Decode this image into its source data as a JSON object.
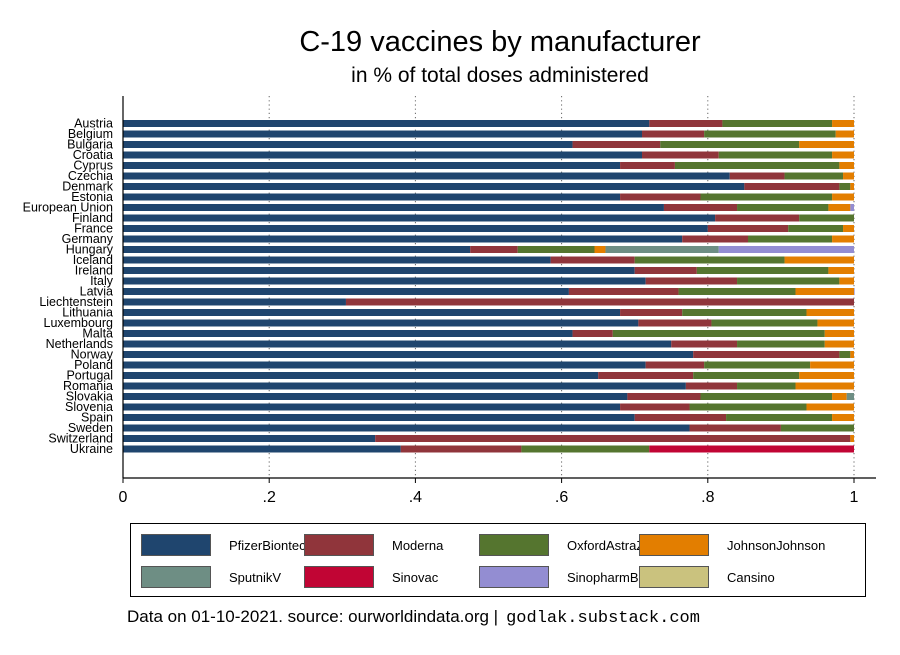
{
  "title": "C-19 vaccines by manufacturer",
  "subtitle": "in % of total doses administered",
  "footer": {
    "source": "Data on 01-10-2021. source: ourworldindata.org |",
    "site": "godlak.substack.com"
  },
  "colors": {
    "PfizerBiontech": "#1f456e",
    "Moderna": "#90353b",
    "OxfordAstraZeneca": "#55752f",
    "JohnsonJohnson": "#e37e00",
    "SputnikV": "#6e8e84",
    "Sinovac": "#c10534",
    "SinopharmBeijing": "#938dd2",
    "Cansino": "#cac27e"
  },
  "chart_data": {
    "type": "bar",
    "orientation": "horizontal",
    "stacked": true,
    "title": "C-19 vaccines by manufacturer",
    "subtitle": "in % of total doses administered",
    "xlim": [
      0,
      1
    ],
    "xticks": [
      0,
      0.2,
      0.4,
      0.6,
      0.8,
      1
    ],
    "xtick_labels": [
      "0",
      ".2",
      ".4",
      ".6",
      ".8",
      "1"
    ],
    "grid": "vertical dotted",
    "legend_position": "bottom",
    "categories": [
      "Austria",
      "Belgium",
      "Bulgaria",
      "Croatia",
      "Cyprus",
      "Czechia",
      "Denmark",
      "Estonia",
      "European Union",
      "Finland",
      "France",
      "Germany",
      "Hungary",
      "Iceland",
      "Ireland",
      "Italy",
      "Latvia",
      "Liechtenstein",
      "Lithuania",
      "Luxembourg",
      "Malta",
      "Netherlands",
      "Norway",
      "Poland",
      "Portugal",
      "Romania",
      "Slovakia",
      "Slovenia",
      "Spain",
      "Sweden",
      "Switzerland",
      "Ukraine"
    ],
    "series": [
      {
        "name": "PfizerBiontech",
        "values": [
          0.72,
          0.71,
          0.615,
          0.71,
          0.68,
          0.83,
          0.85,
          0.68,
          0.74,
          0.81,
          0.8,
          0.765,
          0.475,
          0.585,
          0.7,
          0.715,
          0.61,
          0.305,
          0.68,
          0.705,
          0.615,
          0.75,
          0.78,
          0.715,
          0.65,
          0.77,
          0.69,
          0.68,
          0.7,
          0.775,
          0.345,
          0.38
        ]
      },
      {
        "name": "Moderna",
        "values": [
          0.1,
          0.085,
          0.12,
          0.105,
          0.075,
          0.075,
          0.13,
          0.11,
          0.1,
          0.115,
          0.11,
          0.09,
          0.065,
          0.115,
          0.085,
          0.125,
          0.15,
          0.695,
          0.085,
          0.1,
          0.055,
          0.09,
          0.2,
          0.08,
          0.13,
          0.07,
          0.1,
          0.095,
          0.125,
          0.125,
          0.65,
          0.165
        ]
      },
      {
        "name": "OxfordAstraZeneca",
        "values": [
          0.15,
          0.18,
          0.19,
          0.155,
          0.225,
          0.08,
          0.015,
          0.18,
          0.125,
          0.075,
          0.075,
          0.115,
          0.105,
          0.205,
          0.18,
          0.14,
          0.16,
          0,
          0.17,
          0.145,
          0.29,
          0.12,
          0.015,
          0.145,
          0.145,
          0.08,
          0.18,
          0.16,
          0.145,
          0.1,
          0,
          0.175
        ]
      },
      {
        "name": "JohnsonJohnson",
        "values": [
          0.03,
          0.025,
          0.075,
          0.03,
          0.02,
          0.015,
          0.005,
          0.03,
          0.03,
          0,
          0.015,
          0.03,
          0.015,
          0.095,
          0.035,
          0.02,
          0.08,
          0,
          0.065,
          0.05,
          0.04,
          0.04,
          0.005,
          0.06,
          0.075,
          0.08,
          0.02,
          0.065,
          0.03,
          0,
          0.005,
          0
        ]
      },
      {
        "name": "SputnikV",
        "values": [
          0,
          0,
          0,
          0,
          0,
          0,
          0,
          0,
          0,
          0,
          0,
          0,
          0.155,
          0,
          0,
          0,
          0,
          0,
          0,
          0,
          0,
          0,
          0,
          0,
          0,
          0,
          0.01,
          0,
          0,
          0,
          0,
          0
        ]
      },
      {
        "name": "Sinovac",
        "values": [
          0,
          0,
          0,
          0,
          0,
          0,
          0,
          0,
          0,
          0,
          0,
          0,
          0,
          0,
          0,
          0,
          0,
          0,
          0,
          0,
          0,
          0,
          0,
          0,
          0,
          0,
          0,
          0,
          0,
          0,
          0,
          0.28
        ]
      },
      {
        "name": "SinopharmBeijing",
        "values": [
          0,
          0,
          0,
          0,
          0,
          0,
          0,
          0,
          0.005,
          0,
          0,
          0,
          0.185,
          0,
          0,
          0,
          0.002,
          0,
          0,
          0,
          0,
          0,
          0,
          0,
          0,
          0,
          0,
          0,
          0,
          0,
          0,
          0
        ]
      },
      {
        "name": "Cansino",
        "values": [
          0,
          0,
          0,
          0,
          0,
          0,
          0,
          0,
          0,
          0,
          0,
          0,
          0,
          0,
          0,
          0,
          0,
          0,
          0,
          0,
          0,
          0,
          0,
          0,
          0,
          0,
          0,
          0,
          0,
          0,
          0,
          0
        ]
      }
    ],
    "legend": [
      "PfizerBiontech",
      "Moderna",
      "OxfordAstraZeneca",
      "JohnsonJohnson",
      "SputnikV",
      "Sinovac",
      "SinopharmBeijing",
      "Cansino"
    ]
  }
}
